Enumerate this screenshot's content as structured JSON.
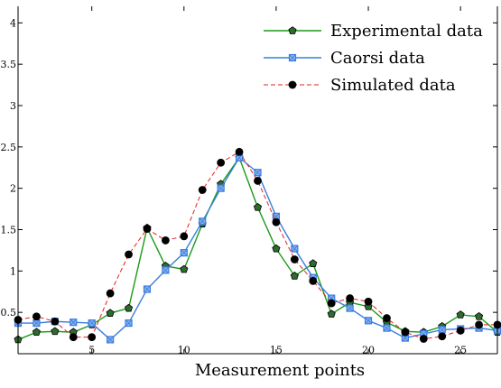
{
  "chart_data": {
    "type": "line",
    "title": "",
    "xlabel": "Measurement points",
    "ylabel": "",
    "xlim": [
      1,
      27
    ],
    "ylim": [
      0,
      4.2
    ],
    "x_ticks": [
      "5",
      "10",
      "15",
      "20",
      "25"
    ],
    "y_ticks": [
      "0.5",
      "1",
      "1.5",
      "2",
      "2.5",
      "3",
      "3.5",
      "4"
    ],
    "x_tick_values": [
      5,
      10,
      15,
      20,
      25
    ],
    "y_tick_values": [
      0.5,
      1,
      1.5,
      2,
      2.5,
      3,
      3.5,
      4
    ],
    "grid": false,
    "legend": "top-right",
    "x": [
      1,
      2,
      3,
      4,
      5,
      6,
      7,
      8,
      9,
      10,
      11,
      12,
      13,
      14,
      15,
      16,
      17,
      18,
      19,
      20,
      21,
      22,
      23,
      24,
      25,
      26,
      27
    ],
    "series": [
      {
        "name": "Experimental data",
        "color": "#1a9a1a",
        "marker_fill": "#2e6b2e",
        "marker": "pentagon",
        "dash": "solid",
        "values": [
          0.17,
          0.26,
          0.27,
          0.26,
          0.35,
          0.49,
          0.55,
          1.52,
          1.06,
          1.02,
          1.57,
          2.05,
          2.37,
          1.77,
          1.27,
          0.94,
          1.09,
          0.48,
          0.62,
          0.57,
          0.38,
          0.27,
          0.26,
          0.33,
          0.47,
          0.45,
          0.26
        ]
      },
      {
        "name": "Caorsi data",
        "color": "#3a7de0",
        "marker_fill": "#8ab4ef",
        "marker": "square",
        "dash": "solid",
        "values": [
          0.37,
          0.37,
          0.39,
          0.38,
          0.37,
          0.17,
          0.37,
          0.78,
          1.01,
          1.22,
          1.6,
          2.0,
          2.37,
          2.19,
          1.66,
          1.27,
          0.92,
          0.67,
          0.55,
          0.4,
          0.31,
          0.19,
          0.24,
          0.29,
          0.3,
          0.31,
          0.28
        ]
      },
      {
        "name": "Simulated data",
        "color": "#e02020",
        "marker_fill": "#000000",
        "marker": "circle",
        "dash": "dashed",
        "values": [
          0.41,
          0.45,
          0.39,
          0.2,
          0.2,
          0.73,
          1.2,
          1.51,
          1.37,
          1.42,
          1.98,
          2.31,
          2.44,
          2.09,
          1.59,
          1.14,
          0.88,
          0.61,
          0.67,
          0.63,
          0.43,
          0.26,
          0.18,
          0.21,
          0.28,
          0.35,
          0.35
        ]
      }
    ]
  }
}
